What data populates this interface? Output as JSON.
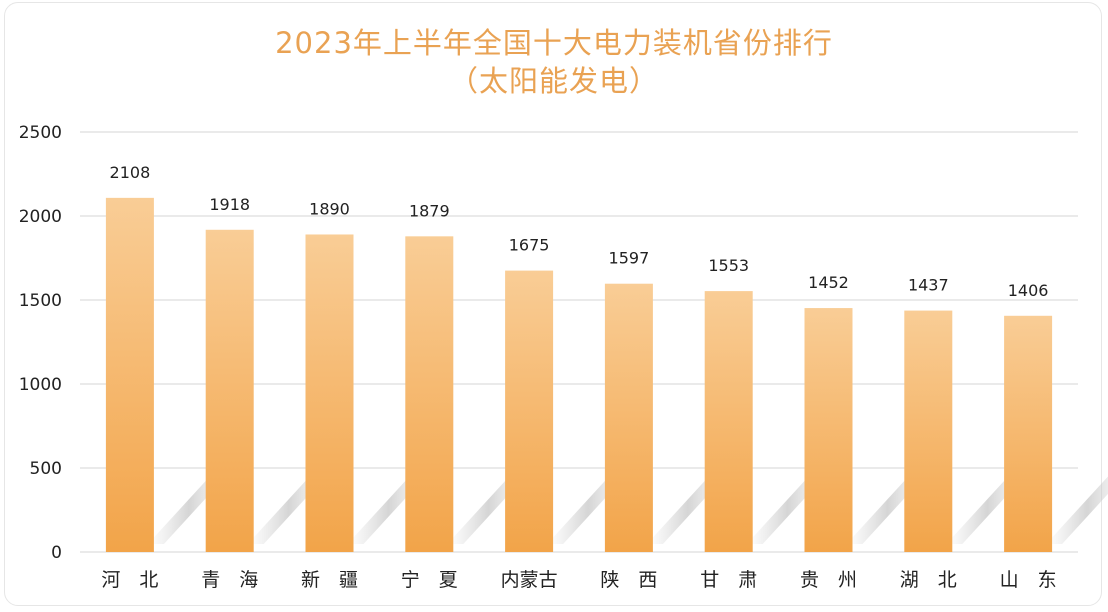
{
  "chart_data": {
    "type": "bar",
    "title": "2023年上半年全国十大电力装机省份排行",
    "subtitle": "（太阳能发电）",
    "categories": [
      "河　北",
      "青　海",
      "新　疆",
      "宁　夏",
      "内蒙古",
      "陕　西",
      "甘　肃",
      "贵　州",
      "湖　北",
      "山　东"
    ],
    "values": [
      2108,
      1918,
      1890,
      1879,
      1675,
      1597,
      1553,
      1452,
      1437,
      1406
    ],
    "yticks": [
      0,
      500,
      1000,
      1500,
      2000,
      2500
    ],
    "ylim": [
      0,
      2500
    ],
    "xlabel": "",
    "ylabel": "",
    "grid": true,
    "colors": {
      "bar_top": "#f9cd96",
      "bar_bottom": "#f2a449",
      "title": "#e9a253",
      "grid": "#d6d6d6"
    }
  }
}
